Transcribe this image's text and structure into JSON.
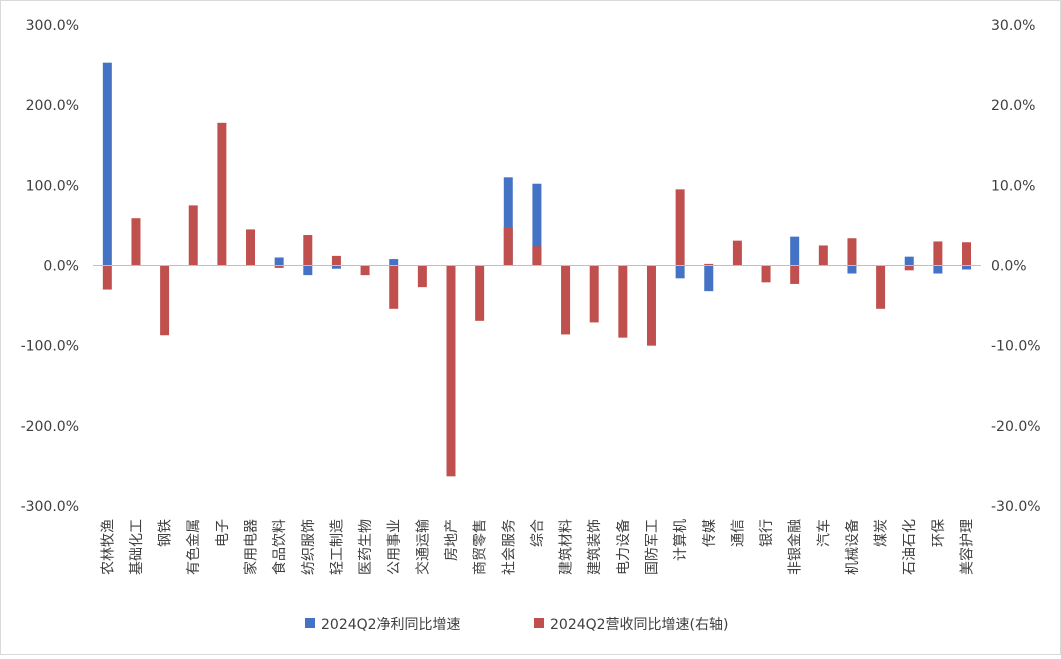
{
  "chart_data": {
    "type": "bar",
    "title": "",
    "categories": [
      "农林牧渔",
      "基础化工",
      "钢铁",
      "有色金属",
      "电子",
      "家用电器",
      "食品饮料",
      "纺织服饰",
      "轻工制造",
      "医药生物",
      "公用事业",
      "交通运输",
      "房地产",
      "商贸零售",
      "社会服务",
      "综合",
      "建筑材料",
      "建筑装饰",
      "电力设备",
      "国防军工",
      "计算机",
      "传媒",
      "通信",
      "银行",
      "非银金融",
      "汽车",
      "机械设备",
      "煤炭",
      "石油石化",
      "环保",
      "美容护理"
    ],
    "series": [
      {
        "name": "2024Q2净利同比增速",
        "axis": "left",
        "color": "#4472C4",
        "values": [
          253,
          0,
          0,
          0,
          0,
          0,
          10,
          -12,
          -4,
          0,
          8,
          0,
          0,
          0,
          110,
          102,
          0,
          0,
          0,
          0,
          -16,
          -32,
          0,
          0,
          36,
          0,
          -10,
          0,
          11,
          -10,
          -5
        ]
      },
      {
        "name": "2024Q2营收同比增速(右轴)",
        "axis": "right",
        "color": "#C0504D",
        "values": [
          -3.0,
          5.9,
          -8.7,
          7.5,
          17.8,
          4.5,
          -0.3,
          3.8,
          1.2,
          -1.2,
          -5.4,
          -2.7,
          -26.3,
          -6.9,
          4.8,
          2.4,
          -8.6,
          -7.1,
          -9.0,
          -10.0,
          9.5,
          0.2,
          3.1,
          -2.1,
          -2.3,
          2.5,
          3.4,
          -5.4,
          -0.6,
          3.0,
          2.9
        ]
      }
    ],
    "y_left": {
      "lim": [
        -300,
        300
      ],
      "ticks": [
        "300.0%",
        "200.0%",
        "100.0%",
        "0.0%",
        "-100.0%",
        "-200.0%",
        "-300.0%"
      ]
    },
    "y_right": {
      "lim": [
        -30,
        30
      ],
      "ticks": [
        "30.0%",
        "20.0%",
        "10.0%",
        "0.0%",
        "-10.0%",
        "-20.0%",
        "-30.0%"
      ]
    },
    "legend": [
      "2024Q2净利同比增速",
      "2024Q2营收同比增速(右轴)"
    ],
    "legend_position": "bottom",
    "grid": false
  }
}
